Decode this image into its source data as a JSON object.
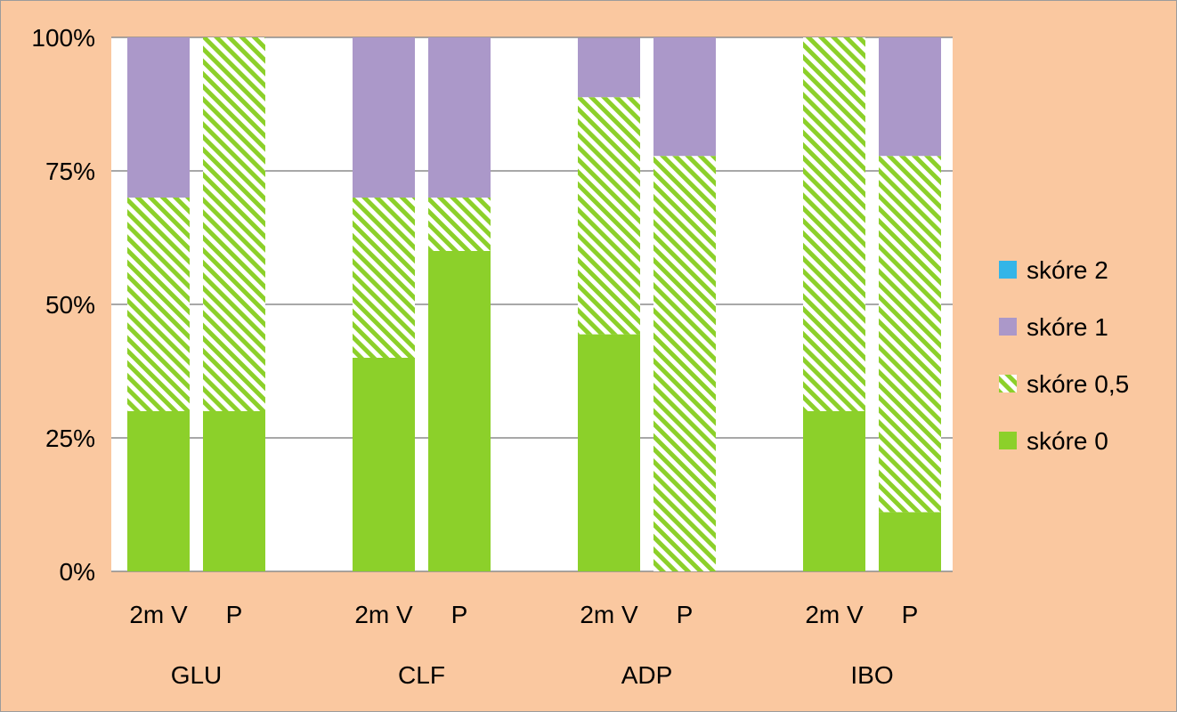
{
  "chart_data": {
    "type": "bar",
    "stacked": true,
    "normalized": true,
    "ylim": [
      0,
      100
    ],
    "y_ticks": [
      "0%",
      "25%",
      "50%",
      "75%",
      "100%"
    ],
    "grid": true,
    "legend_position": "right",
    "groups": [
      "GLU",
      "CLF",
      "ADP",
      "IBO"
    ],
    "categories": [
      "2m V",
      "P",
      "2m V",
      "P",
      "2m V",
      "P",
      "2m V",
      "P"
    ],
    "series": [
      {
        "name": "skóre 0",
        "color": "#8cd02a",
        "pattern": "solid",
        "values": [
          30,
          30,
          40,
          60,
          44.4,
          0,
          30,
          11.1
        ]
      },
      {
        "name": "skóre 0,5",
        "color": "#8cd02a",
        "pattern": "hatched",
        "values": [
          40,
          70,
          30,
          10,
          44.4,
          77.8,
          70,
          66.7
        ]
      },
      {
        "name": "skóre 1",
        "color": "#ab98c9",
        "pattern": "solid",
        "values": [
          30,
          0,
          30,
          30,
          11.1,
          22.2,
          0,
          22.2
        ]
      },
      {
        "name": "skóre 2",
        "color": "#33b5e8",
        "pattern": "solid",
        "values": [
          0,
          0,
          0,
          0,
          0,
          0,
          0,
          0
        ]
      }
    ],
    "legend_order": [
      "skóre 2",
      "skóre 1",
      "skóre 0,5",
      "skóre 0"
    ]
  }
}
